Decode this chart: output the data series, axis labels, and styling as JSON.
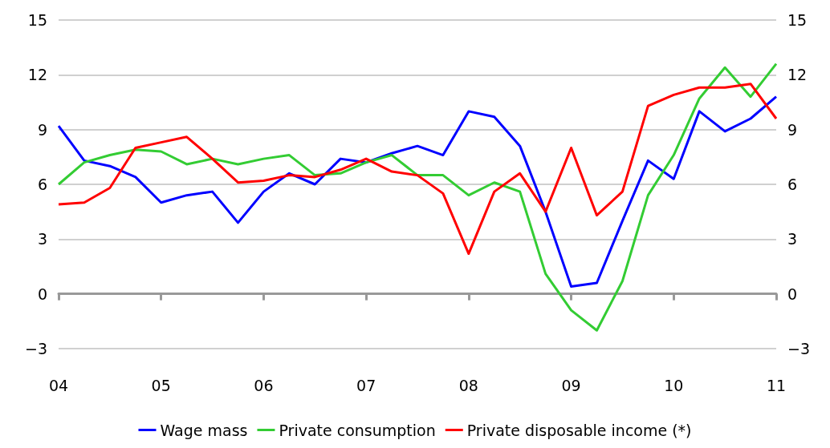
{
  "chart_data": {
    "type": "line",
    "x": [
      2004,
      2004.25,
      2004.5,
      2004.75,
      2005,
      2005.25,
      2005.5,
      2005.75,
      2006,
      2006.25,
      2006.5,
      2006.75,
      2007,
      2007.25,
      2007.5,
      2007.75,
      2008,
      2008.25,
      2008.5,
      2008.75,
      2009,
      2009.25,
      2009.5,
      2009.75,
      2010,
      2010.25,
      2010.5,
      2010.75,
      2011
    ],
    "series": [
      {
        "name": "Wage mass",
        "color": "#0000ff",
        "values": [
          9.2,
          7.3,
          7.0,
          6.4,
          5.0,
          5.4,
          5.6,
          3.9,
          5.6,
          6.6,
          6.0,
          7.4,
          7.2,
          7.7,
          8.1,
          7.6,
          10.0,
          9.7,
          8.1,
          4.5,
          0.4,
          0.6,
          4.0,
          7.3,
          6.3,
          10.0,
          8.9,
          9.6,
          10.8
        ]
      },
      {
        "name": "Private consumption",
        "color": "#33cc33",
        "values": [
          6.0,
          7.2,
          7.6,
          7.9,
          7.8,
          7.1,
          7.4,
          7.1,
          7.4,
          7.6,
          6.5,
          6.6,
          7.2,
          7.6,
          6.5,
          6.5,
          5.4,
          6.1,
          5.6,
          1.1,
          -0.9,
          -2.0,
          0.7,
          5.4,
          7.6,
          10.7,
          12.4,
          10.8,
          12.6
        ]
      },
      {
        "name": "Private disposable income (*)",
        "color": "#ff0000",
        "values": [
          4.9,
          5.0,
          5.8,
          8.0,
          8.3,
          8.6,
          7.4,
          6.1,
          6.2,
          6.5,
          6.4,
          6.8,
          7.4,
          6.7,
          6.5,
          5.5,
          2.2,
          5.6,
          6.6,
          4.5,
          8.0,
          4.3,
          5.6,
          10.3,
          10.9,
          11.3,
          11.3,
          11.5,
          9.6
        ]
      }
    ],
    "xlim": [
      2004,
      2011
    ],
    "xticks": [
      {
        "value": 2004,
        "label": "04"
      },
      {
        "value": 2005,
        "label": "05"
      },
      {
        "value": 2006,
        "label": "06"
      },
      {
        "value": 2007,
        "label": "07"
      },
      {
        "value": 2008,
        "label": "08"
      },
      {
        "value": 2009,
        "label": "09"
      },
      {
        "value": 2010,
        "label": "10"
      },
      {
        "value": 2011,
        "label": "11"
      }
    ],
    "ylim": [
      -3,
      15
    ],
    "yticks": [
      -3,
      0,
      3,
      6,
      9,
      12,
      15
    ],
    "y2lim": [
      -3,
      15
    ],
    "y2ticks": [
      -3,
      0,
      3,
      6,
      9,
      12,
      15
    ],
    "grid": "y",
    "legend": "bottom",
    "marker": "none",
    "line_style": "solid"
  }
}
